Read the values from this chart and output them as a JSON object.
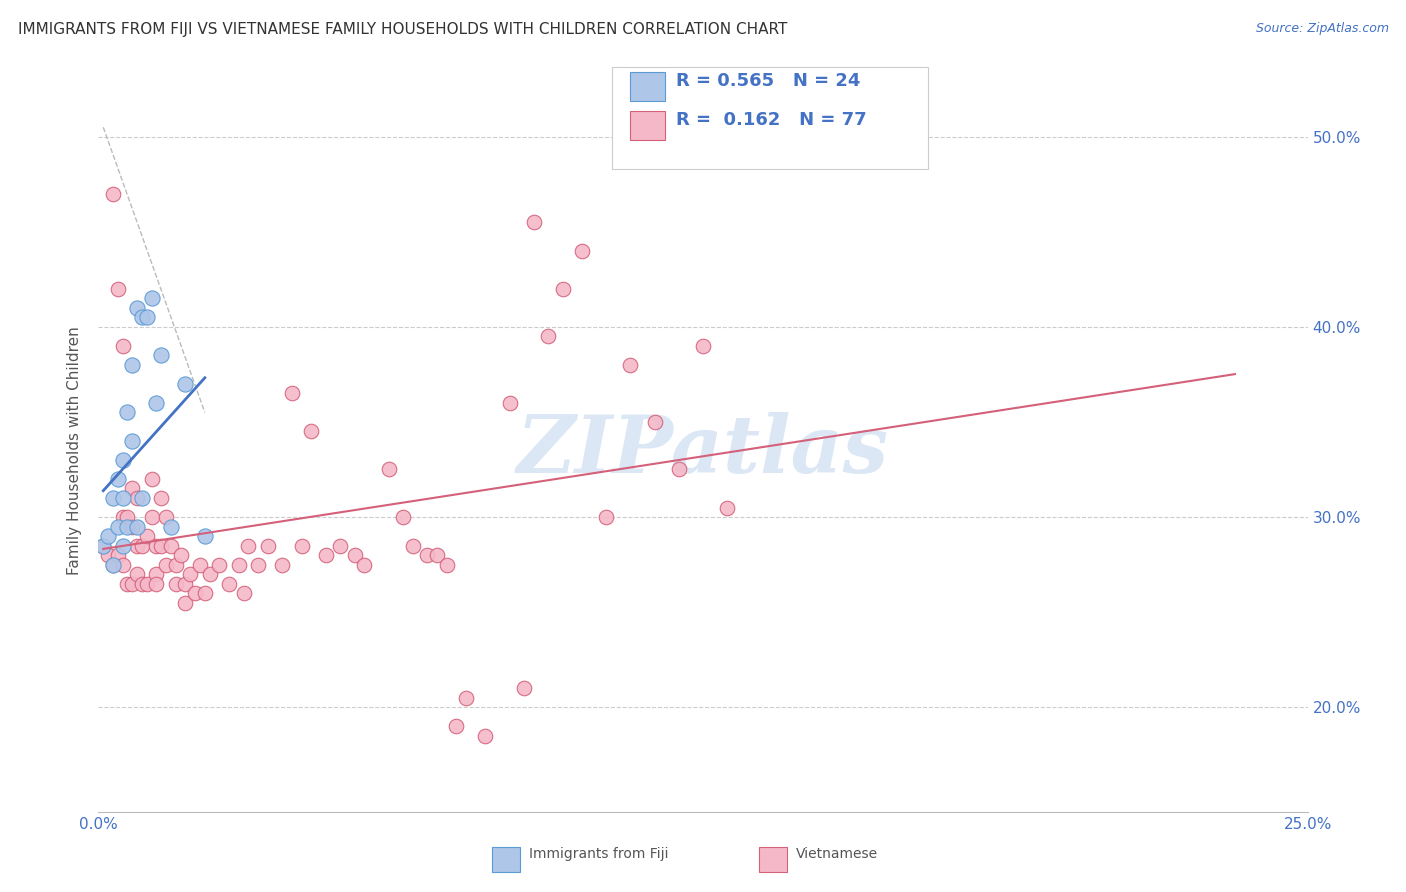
{
  "title": "IMMIGRANTS FROM FIJI VS VIETNAMESE FAMILY HOUSEHOLDS WITH CHILDREN CORRELATION CHART",
  "source": "Source: ZipAtlas.com",
  "ylabel": "Family Households with Children",
  "xlim": [
    0.0,
    0.25
  ],
  "ylim": [
    0.145,
    0.525
  ],
  "yticks": [
    0.2,
    0.3,
    0.4,
    0.5
  ],
  "ytick_labels": [
    "20.0%",
    "30.0%",
    "40.0%",
    "50.0%"
  ],
  "xticks": [
    0.0,
    0.05,
    0.1,
    0.15,
    0.2,
    0.25
  ],
  "fiji_color": "#aec6e8",
  "fiji_edge_color": "#5b9bd5",
  "viet_color": "#f4b8c8",
  "viet_edge_color": "#d4607a",
  "fiji_R": 0.565,
  "fiji_N": 24,
  "viet_R": 0.162,
  "viet_N": 77,
  "legend_text_color": "#4472c4",
  "fiji_line_color": "#4472c4",
  "viet_line_color": "#d4607a",
  "fiji_scatter_x": [
    0.001,
    0.002,
    0.003,
    0.003,
    0.004,
    0.004,
    0.005,
    0.005,
    0.005,
    0.006,
    0.006,
    0.007,
    0.007,
    0.008,
    0.008,
    0.009,
    0.009,
    0.01,
    0.011,
    0.012,
    0.013,
    0.015,
    0.018,
    0.022
  ],
  "fiji_scatter_y": [
    0.285,
    0.29,
    0.275,
    0.31,
    0.32,
    0.295,
    0.33,
    0.31,
    0.285,
    0.355,
    0.295,
    0.38,
    0.34,
    0.41,
    0.295,
    0.405,
    0.31,
    0.405,
    0.415,
    0.36,
    0.385,
    0.295,
    0.37,
    0.29
  ],
  "viet_scatter_x": [
    0.001,
    0.002,
    0.003,
    0.003,
    0.004,
    0.004,
    0.005,
    0.005,
    0.005,
    0.006,
    0.006,
    0.007,
    0.007,
    0.007,
    0.008,
    0.008,
    0.008,
    0.009,
    0.009,
    0.01,
    0.01,
    0.011,
    0.011,
    0.012,
    0.012,
    0.012,
    0.013,
    0.013,
    0.014,
    0.014,
    0.015,
    0.016,
    0.016,
    0.017,
    0.018,
    0.018,
    0.019,
    0.02,
    0.021,
    0.022,
    0.023,
    0.025,
    0.027,
    0.029,
    0.03,
    0.031,
    0.033,
    0.035,
    0.038,
    0.04,
    0.042,
    0.044,
    0.047,
    0.05,
    0.053,
    0.055,
    0.06,
    0.063,
    0.065,
    0.068,
    0.07,
    0.072,
    0.074,
    0.076,
    0.08,
    0.085,
    0.088,
    0.09,
    0.093,
    0.096,
    0.1,
    0.105,
    0.11,
    0.115,
    0.12,
    0.125,
    0.13
  ],
  "viet_scatter_y": [
    0.285,
    0.28,
    0.47,
    0.275,
    0.42,
    0.28,
    0.39,
    0.3,
    0.275,
    0.3,
    0.265,
    0.315,
    0.295,
    0.265,
    0.31,
    0.285,
    0.27,
    0.285,
    0.265,
    0.29,
    0.265,
    0.32,
    0.3,
    0.285,
    0.27,
    0.265,
    0.31,
    0.285,
    0.3,
    0.275,
    0.285,
    0.275,
    0.265,
    0.28,
    0.265,
    0.255,
    0.27,
    0.26,
    0.275,
    0.26,
    0.27,
    0.275,
    0.265,
    0.275,
    0.26,
    0.285,
    0.275,
    0.285,
    0.275,
    0.365,
    0.285,
    0.345,
    0.28,
    0.285,
    0.28,
    0.275,
    0.325,
    0.3,
    0.285,
    0.28,
    0.28,
    0.275,
    0.19,
    0.205,
    0.185,
    0.36,
    0.21,
    0.455,
    0.395,
    0.42,
    0.44,
    0.3,
    0.38,
    0.35,
    0.325,
    0.39,
    0.305
  ],
  "diag_line_x": [
    0.001,
    0.022
  ],
  "diag_line_y": [
    0.505,
    0.355
  ],
  "viet_line_x": [
    0.001,
    0.13
  ],
  "watermark": "ZIPatlas",
  "watermark_color": "#ccddf0",
  "background_color": "#ffffff"
}
